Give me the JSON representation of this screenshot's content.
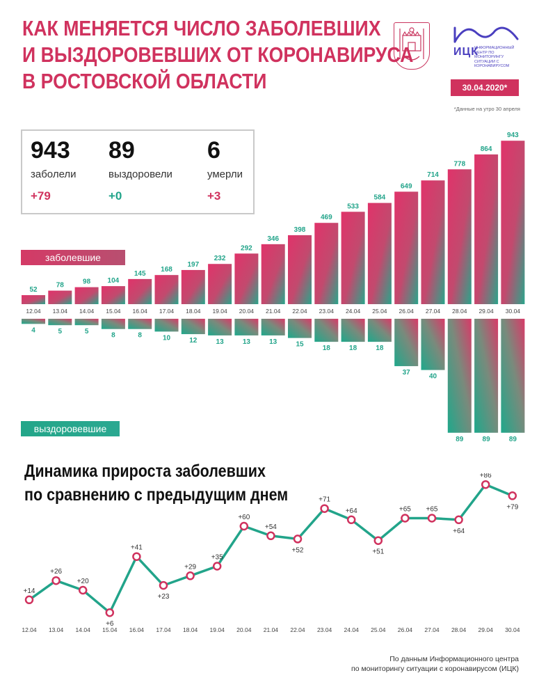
{
  "header": {
    "title_lines": [
      "Как меняется число заболевших",
      "и выздоровевших от коронавируса",
      "в Ростовской области"
    ],
    "logo_name": "ИЦК",
    "logo_subtitle": "Информационный центр по мониторингу ситуации с коронавирусом",
    "date": "30.04.2020*",
    "footnote": "*Данные на утро 30 апреля"
  },
  "stats": {
    "cases": {
      "value": "943",
      "label": "заболели",
      "delta": "+79"
    },
    "recovered": {
      "value": "89",
      "label": "выздоровели",
      "delta": "+0"
    },
    "deaths": {
      "value": "6",
      "label": "умерли",
      "delta": "+3"
    }
  },
  "labels": {
    "cases_tag": "заболевшие",
    "recovered_tag": "выздоровевшие",
    "growth_title_lines": [
      "Динамика прироста заболевших",
      "по сравнению с предыдущим днем"
    ]
  },
  "colors": {
    "accent": "#d0325e",
    "teal": "#22a48a",
    "brand": "#4a3fbf"
  },
  "chart_data": [
    {
      "type": "bar",
      "categories": [
        "12.04",
        "13.04",
        "14.04",
        "15.04",
        "16.04",
        "17.04",
        "18.04",
        "19.04",
        "20.04",
        "21.04",
        "22.04",
        "23.04",
        "24.04",
        "25.04",
        "26.04",
        "27.04",
        "28.04",
        "29.04",
        "30.04"
      ],
      "series": [
        {
          "name": "заболевшие",
          "values": [
            52,
            78,
            98,
            104,
            145,
            168,
            197,
            232,
            292,
            346,
            398,
            469,
            533,
            584,
            649,
            714,
            778,
            864,
            943
          ]
        },
        {
          "name": "выздоровевшие",
          "values": [
            4,
            5,
            5,
            8,
            8,
            10,
            12,
            13,
            13,
            13,
            15,
            18,
            18,
            18,
            37,
            40,
            89,
            89,
            89
          ]
        }
      ]
    },
    {
      "type": "line",
      "title": "Динамика прироста заболевших по сравнению с предыдущим днем",
      "x": [
        "12.04",
        "13.04",
        "14.04",
        "15.04",
        "16.04",
        "17.04",
        "18.04",
        "19.04",
        "20.04",
        "21.04",
        "22.04",
        "23.04",
        "24.04",
        "25.04",
        "26.04",
        "27.04",
        "28.04",
        "29.04",
        "30.04"
      ],
      "values": [
        14,
        26,
        20,
        6,
        41,
        23,
        29,
        35,
        60,
        54,
        52,
        71,
        64,
        51,
        65,
        65,
        64,
        86,
        79
      ],
      "labels": [
        "+14",
        "+26",
        "+20",
        "+6",
        "+41",
        "+23",
        "+29",
        "+35",
        "+60",
        "+54",
        "+52",
        "+71",
        "+64",
        "+51",
        "+65",
        "+65",
        "+64",
        "+86",
        "+79"
      ],
      "ylim": [
        0,
        95
      ]
    }
  ],
  "source": {
    "line1": "По данным Информационного центра",
    "line2": "по мониторингу ситуации с коронавирусом (ИЦК)"
  }
}
